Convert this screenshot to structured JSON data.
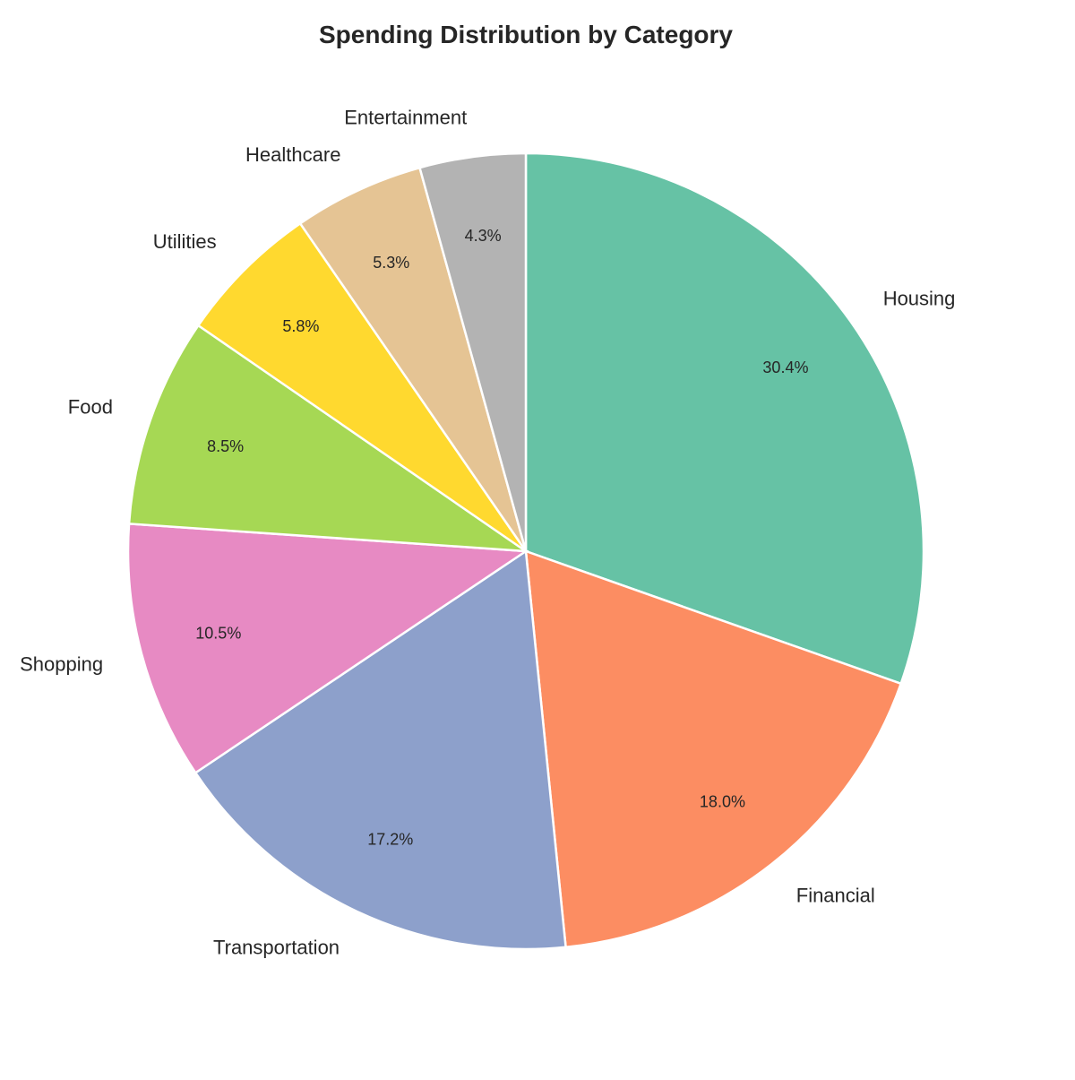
{
  "chart_data": {
    "type": "pie",
    "title": "Spending Distribution by Category",
    "start_angle_deg": 90,
    "direction": "clockwise",
    "legend": "none",
    "slices": [
      {
        "label": "Housing",
        "value": 30.4,
        "pct_text": "30.4%",
        "color": "#66c2a5"
      },
      {
        "label": "Financial",
        "value": 18.0,
        "pct_text": "18.0%",
        "color": "#fc8d62"
      },
      {
        "label": "Transportation",
        "value": 17.2,
        "pct_text": "17.2%",
        "color": "#8da0cb"
      },
      {
        "label": "Shopping",
        "value": 10.5,
        "pct_text": "10.5%",
        "color": "#e78ac3"
      },
      {
        "label": "Food",
        "value": 8.5,
        "pct_text": "8.5%",
        "color": "#a6d854"
      },
      {
        "label": "Utilities",
        "value": 5.8,
        "pct_text": "5.8%",
        "color": "#ffd92f"
      },
      {
        "label": "Healthcare",
        "value": 5.3,
        "pct_text": "5.3%",
        "color": "#e5c494"
      },
      {
        "label": "Entertainment",
        "value": 4.3,
        "pct_text": "4.3%",
        "color": "#b3b3b3"
      }
    ]
  }
}
